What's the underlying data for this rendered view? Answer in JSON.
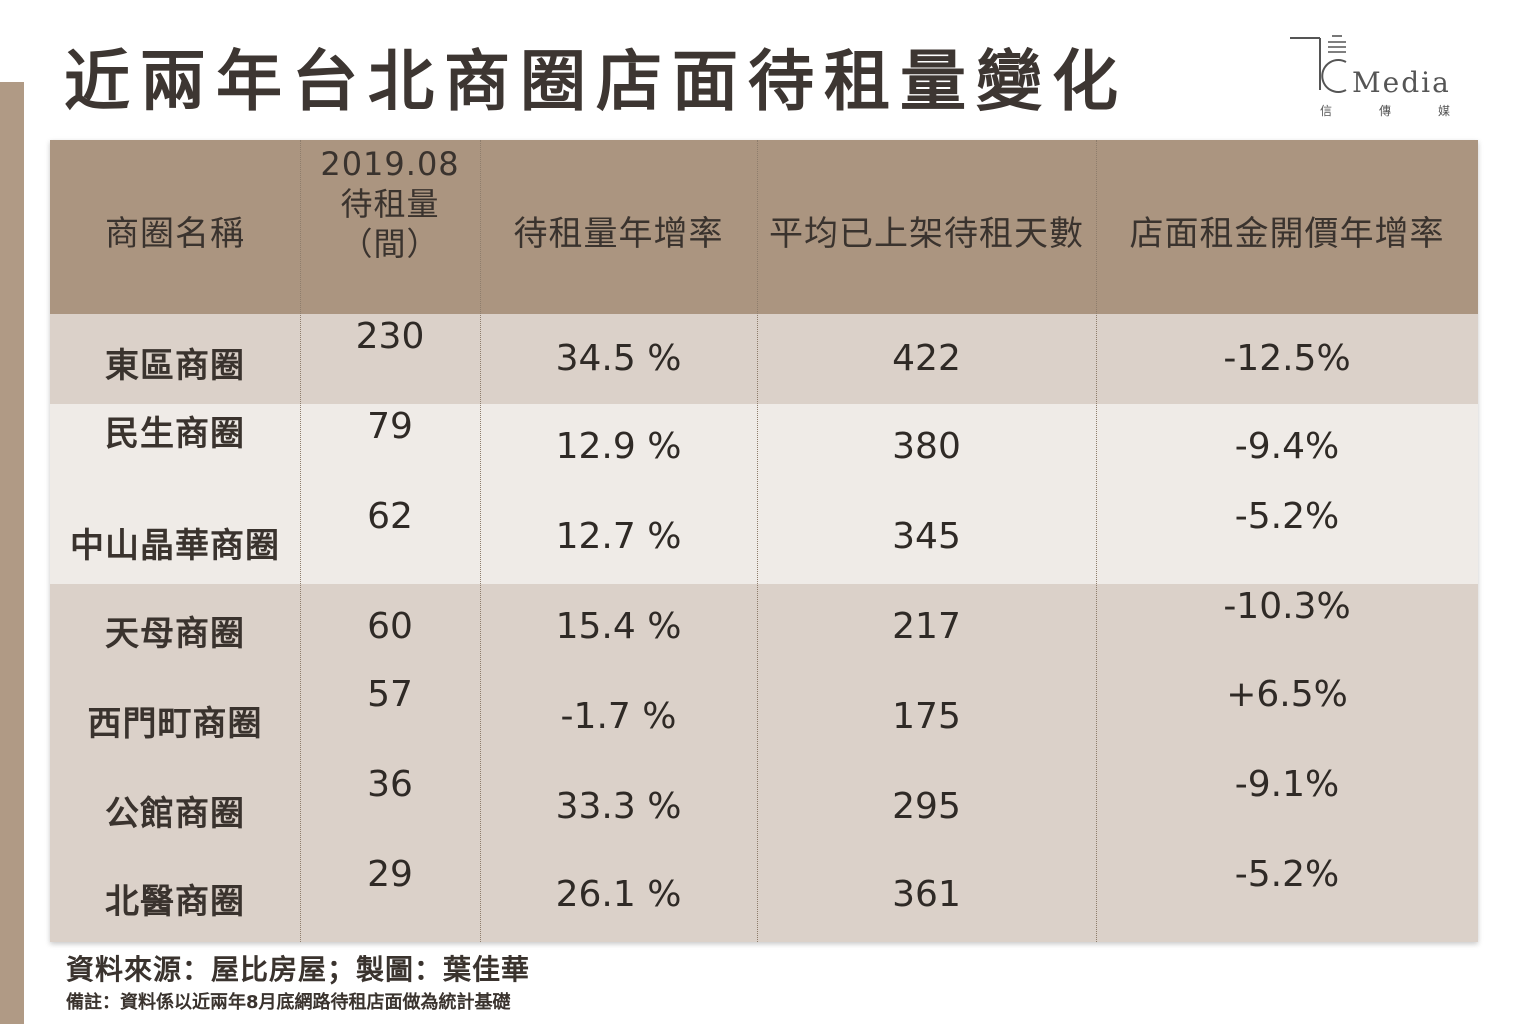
{
  "title": "近兩年台北商圈店面待租量變化",
  "logo": {
    "latin": "Media",
    "chars": [
      "信",
      "傳",
      "媒"
    ]
  },
  "table": {
    "headers": [
      "商圈名稱",
      "2019.08\n待租量\n（間）",
      "待租量年增率",
      "平均已上架待租天數",
      "店面租金開價年增率"
    ],
    "rows": [
      {
        "name": "東區商圈",
        "vacancies": "230",
        "yoy": "34.5 %",
        "days": "422",
        "rent": "-12.5%"
      },
      {
        "name": "民生商圈",
        "vacancies": "79",
        "yoy": "12.9 %",
        "days": "380",
        "rent": "-9.4%"
      },
      {
        "name": "中山晶華商圈",
        "vacancies": "62",
        "yoy": "12.7 %",
        "days": "345",
        "rent": "-5.2%"
      },
      {
        "name": "天母商圈",
        "vacancies": "60",
        "yoy": "15.4 %",
        "days": "217",
        "rent": "-10.3%"
      },
      {
        "name": "西門町商圈",
        "vacancies": "57",
        "yoy": "-1.7 %",
        "days": "175",
        "rent": "+6.5%"
      },
      {
        "name": "公館商圈",
        "vacancies": "36",
        "yoy": "33.3 %",
        "days": "295",
        "rent": "-9.1%"
      },
      {
        "name": "北醫商圈",
        "vacancies": "29",
        "yoy": "26.1 %",
        "days": "361",
        "rent": "-5.2%"
      }
    ]
  },
  "footer": {
    "source": "資料來源：屋比房屋；製圖：葉佳華",
    "note": "備註：資料係以近兩年8月底網路待租店面做為統計基礎"
  },
  "colors": {
    "header_bg": "#ab9580",
    "band_dark": "#dbd1c9",
    "band_light": "#efebe7",
    "left_bar": "#b09a85"
  }
}
